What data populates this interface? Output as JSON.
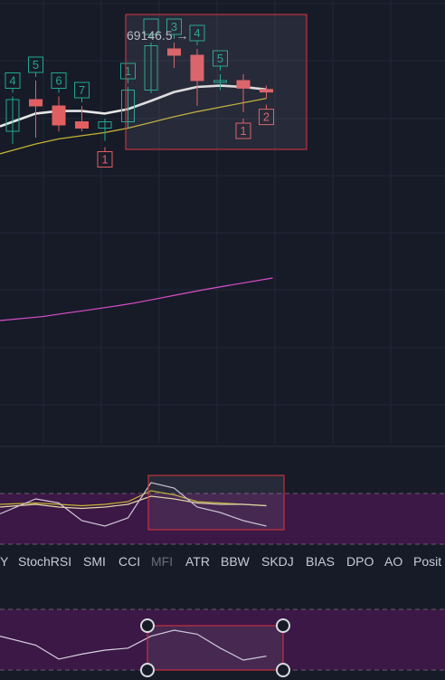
{
  "colors": {
    "background": "#171b28",
    "grid": "#222738",
    "up": "#1fa891",
    "down": "#e25f61",
    "ma_white": "#e6e6e6",
    "ma_yellow": "#c2b334",
    "ma_pink": "#d94fc9",
    "selection_red": "#e0343e",
    "osc_band": "#3b1845",
    "tab_active": "#c8cbd4",
    "tab_muted": "#6b6f7c"
  },
  "chart_data": [
    {
      "type": "candlestick",
      "price_label": "69146.5 →",
      "candles": [
        {
          "o": 69010,
          "h": 69065,
          "l": 68990,
          "c": 69060,
          "marker": "4",
          "marker_pos": "above"
        },
        {
          "o": 69060,
          "h": 69090,
          "l": 69000,
          "c": 69050,
          "marker": "5",
          "marker_pos": "above"
        },
        {
          "o": 69050,
          "h": 69065,
          "l": 69010,
          "c": 69020,
          "marker": "6",
          "marker_pos": "above"
        },
        {
          "o": 69025,
          "h": 69050,
          "l": 69010,
          "c": 69015,
          "marker": "7",
          "marker_pos": "above"
        },
        {
          "o": 69015,
          "h": 69030,
          "l": 68995,
          "c": 69025,
          "marker": "1",
          "marker_pos": "below"
        },
        {
          "o": 69025,
          "h": 69080,
          "l": 69015,
          "c": 69075,
          "marker": "1",
          "marker_pos": "above"
        },
        {
          "o": 69075,
          "h": 69150,
          "l": 69070,
          "c": 69145,
          "marker": "",
          "marker_pos": "above"
        },
        {
          "o": 69140,
          "h": 69150,
          "l": 69110,
          "c": 69130,
          "marker": "3",
          "marker_pos": "above"
        },
        {
          "o": 69130,
          "h": 69140,
          "l": 69050,
          "c": 69090,
          "marker": "4",
          "marker_pos": "above"
        },
        {
          "o": 69088,
          "h": 69100,
          "l": 69075,
          "c": 69090,
          "marker": "5",
          "marker_pos": "above"
        },
        {
          "o": 69090,
          "h": 69100,
          "l": 69040,
          "c": 69078,
          "marker": "1",
          "marker_pos": "below"
        },
        {
          "o": 69076,
          "h": 69082,
          "l": 69062,
          "c": 69072,
          "marker": "2",
          "marker_pos": "below"
        }
      ],
      "ma_white": [
        69025,
        69038,
        69042,
        69042,
        69038,
        69045,
        69058,
        69072,
        69080,
        69082,
        69080,
        69076
      ],
      "ma_yellow": [
        68980,
        68990,
        68998,
        69003,
        69008,
        69015,
        69024,
        69033,
        69041,
        69048,
        69055,
        69062
      ],
      "ma_pink": [
        68540,
        68555,
        68568,
        68580,
        68593,
        68607,
        68624,
        68641,
        68658,
        68673,
        68688,
        68703
      ]
    },
    {
      "type": "line",
      "series": [
        {
          "values": [
            62,
            63,
            62,
            61,
            62,
            64,
            72,
            69,
            64,
            63,
            62,
            61
          ]
        },
        {
          "values": [
            60,
            62,
            60,
            59,
            60,
            62,
            68,
            66,
            63,
            62,
            62,
            61
          ]
        },
        {
          "values": [
            55,
            66,
            63,
            50,
            46,
            52,
            78,
            74,
            60,
            56,
            50,
            46
          ]
        }
      ]
    },
    {
      "type": "line",
      "series": [
        {
          "values": [
            34,
            25,
            11,
            16,
            20,
            22,
            34,
            40,
            36,
            22,
            10,
            14
          ]
        }
      ]
    }
  ],
  "tabs": [
    {
      "label": "Y",
      "active": false
    },
    {
      "label": "StochRSI",
      "active": false
    },
    {
      "label": "SMI",
      "active": false
    },
    {
      "label": "CCI",
      "active": false
    },
    {
      "label": "MFI",
      "active": true
    },
    {
      "label": "ATR",
      "active": false
    },
    {
      "label": "BBW",
      "active": false
    },
    {
      "label": "SKDJ",
      "active": false
    },
    {
      "label": "BIAS",
      "active": false
    },
    {
      "label": "DPO",
      "active": false
    },
    {
      "label": "AO",
      "active": false
    },
    {
      "label": "Posit",
      "active": false
    }
  ]
}
